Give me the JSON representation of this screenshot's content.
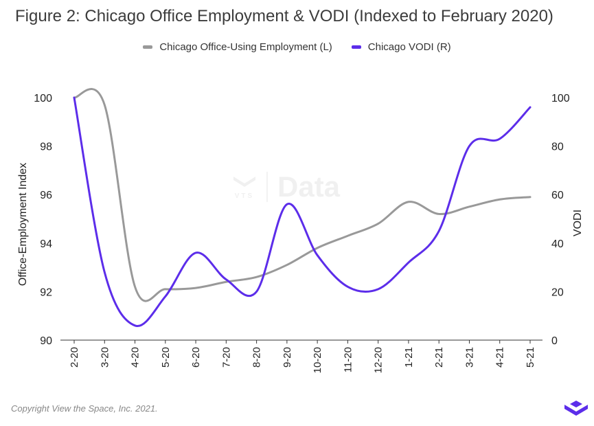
{
  "title": "Figure 2: Chicago Office Employment & VODI (Indexed to February 2020)",
  "legend": [
    {
      "label": "Chicago Office-Using Employment (L)",
      "color": "#999999"
    },
    {
      "label": "Chicago VODI (R)",
      "color": "#5c2dea"
    }
  ],
  "watermark": {
    "brand": "VTS",
    "text": "Data"
  },
  "copyright": "Copyright View the Space, Inc. 2021.",
  "logo_icon": "vts-chevron-logo-icon",
  "chart_data": {
    "type": "line",
    "categories": [
      "2-20",
      "3-20",
      "4-20",
      "5-20",
      "6-20",
      "7-20",
      "8-20",
      "9-20",
      "10-20",
      "11-20",
      "12-20",
      "1-21",
      "2-21",
      "3-21",
      "4-21",
      "5-21"
    ],
    "ylabel_left": "Office-Employment Index",
    "ylabel_right": "VODI",
    "ylim_left": [
      90,
      100
    ],
    "ylim_right": [
      0,
      100
    ],
    "yticks_left": [
      90,
      92,
      94,
      96,
      98,
      100
    ],
    "yticks_right": [
      0,
      20,
      40,
      60,
      80,
      100
    ],
    "series": [
      {
        "name": "Chicago Office-Using Employment (L)",
        "axis": "left",
        "color": "#999999",
        "values": [
          100,
          99.7,
          92.2,
          92.1,
          92.15,
          92.4,
          92.6,
          93.1,
          93.8,
          94.3,
          94.8,
          95.7,
          95.2,
          95.5,
          95.8,
          95.9
        ]
      },
      {
        "name": "Chicago VODI (R)",
        "axis": "right",
        "color": "#5c2dea",
        "values": [
          100,
          28,
          6,
          18,
          36,
          25,
          20,
          56,
          35,
          22,
          21,
          32,
          45,
          80,
          83,
          96
        ]
      }
    ]
  }
}
